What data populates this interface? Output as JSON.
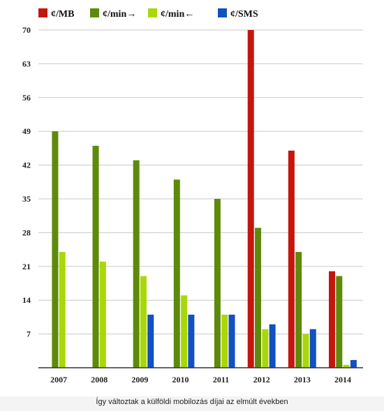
{
  "caption": "Így változtak a külföldi mobilozás díjai az elmúlt években",
  "chart_data": {
    "type": "bar",
    "title": "",
    "xlabel": "",
    "ylabel": "",
    "ylim": [
      0,
      70
    ],
    "yticks": [
      7,
      14,
      21,
      28,
      35,
      42,
      49,
      56,
      63,
      70
    ],
    "grid": true,
    "legend_position": "top-left",
    "categories": [
      "2007",
      "2008",
      "2009",
      "2010",
      "2011",
      "2012",
      "2013",
      "2014"
    ],
    "series": [
      {
        "name": "¢/MB",
        "color": "#c4160e",
        "values": [
          null,
          null,
          null,
          null,
          null,
          70,
          45,
          20
        ]
      },
      {
        "name": "¢/min→",
        "color": "#5e8a0b",
        "values": [
          49,
          46,
          43,
          39,
          35,
          29,
          24,
          19
        ]
      },
      {
        "name": "¢/min←",
        "color": "#a9d80a",
        "values": [
          24,
          22,
          19,
          15,
          11,
          8,
          7,
          0.6
        ]
      },
      {
        "name": "¢/SMS",
        "color": "#1350c0",
        "values": [
          null,
          null,
          11,
          11,
          11,
          9,
          8,
          1.6
        ]
      }
    ]
  }
}
